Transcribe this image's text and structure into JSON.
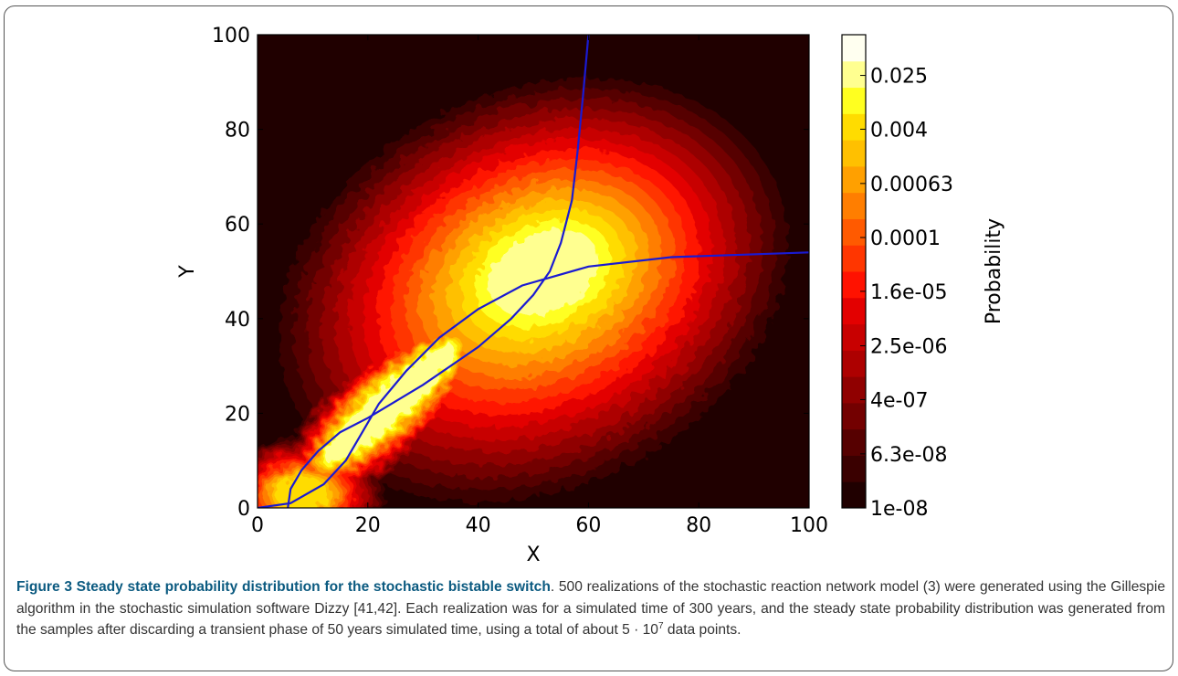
{
  "chart_data": {
    "type": "heatmap",
    "xlabel": "X",
    "ylabel": "Y",
    "xlim": [
      0,
      100
    ],
    "ylim": [
      0,
      100
    ],
    "xticks": [
      "0",
      "20",
      "40",
      "60",
      "80",
      "100"
    ],
    "yticks": [
      "0",
      "20",
      "40",
      "60",
      "80",
      "100"
    ],
    "colorbar": {
      "label": "Probability",
      "scale": "log",
      "range": [
        1e-08,
        0.1
      ],
      "ticks": [
        "1e-08",
        "6.3e-08",
        "4e-07",
        "2.5e-06",
        "1.6e-05",
        "0.0001",
        "0.00063",
        "0.004",
        "0.025"
      ]
    },
    "colormap": "hot",
    "levels": 18,
    "density_peaks": [
      {
        "x": 52,
        "y": 50,
        "note": "main high-probability mode"
      },
      {
        "x": 8,
        "y": 3,
        "note": "low-state mode"
      }
    ],
    "curves": [
      {
        "color": "#1a1ad2",
        "points": [
          [
            5.5,
            0
          ],
          [
            6,
            4
          ],
          [
            8,
            8
          ],
          [
            11,
            12
          ],
          [
            15,
            16
          ],
          [
            20,
            19
          ],
          [
            30,
            26
          ],
          [
            40,
            34
          ],
          [
            46,
            40
          ],
          [
            50,
            45
          ],
          [
            53,
            50
          ],
          [
            55,
            56
          ],
          [
            57,
            65
          ],
          [
            58,
            75
          ],
          [
            59,
            87
          ],
          [
            60,
            100
          ]
        ]
      },
      {
        "color": "#1a1ad2",
        "points": [
          [
            0,
            0
          ],
          [
            6,
            1
          ],
          [
            12,
            5
          ],
          [
            16,
            10
          ],
          [
            19,
            16
          ],
          [
            22,
            22
          ],
          [
            27,
            29
          ],
          [
            33,
            36
          ],
          [
            40,
            42
          ],
          [
            48,
            47
          ],
          [
            60,
            51
          ],
          [
            75,
            53
          ],
          [
            100,
            54
          ]
        ]
      }
    ]
  },
  "caption": {
    "label": "Figure 3 Steady state probability distribution for the stochastic bistable switch",
    "text1": ". 500 realizations of the stochastic reaction network model (3) were generated using the Gillespie algorithm in the stochastic simulation software Dizzy [41,42]. Each realization was for a simulated time of 300 years, and the steady state probability distribution was generated from the samples after discarding a transient phase of 50 years simulated time, using a total of about 5 · 10",
    "sup": "7",
    "text2": " data points."
  }
}
